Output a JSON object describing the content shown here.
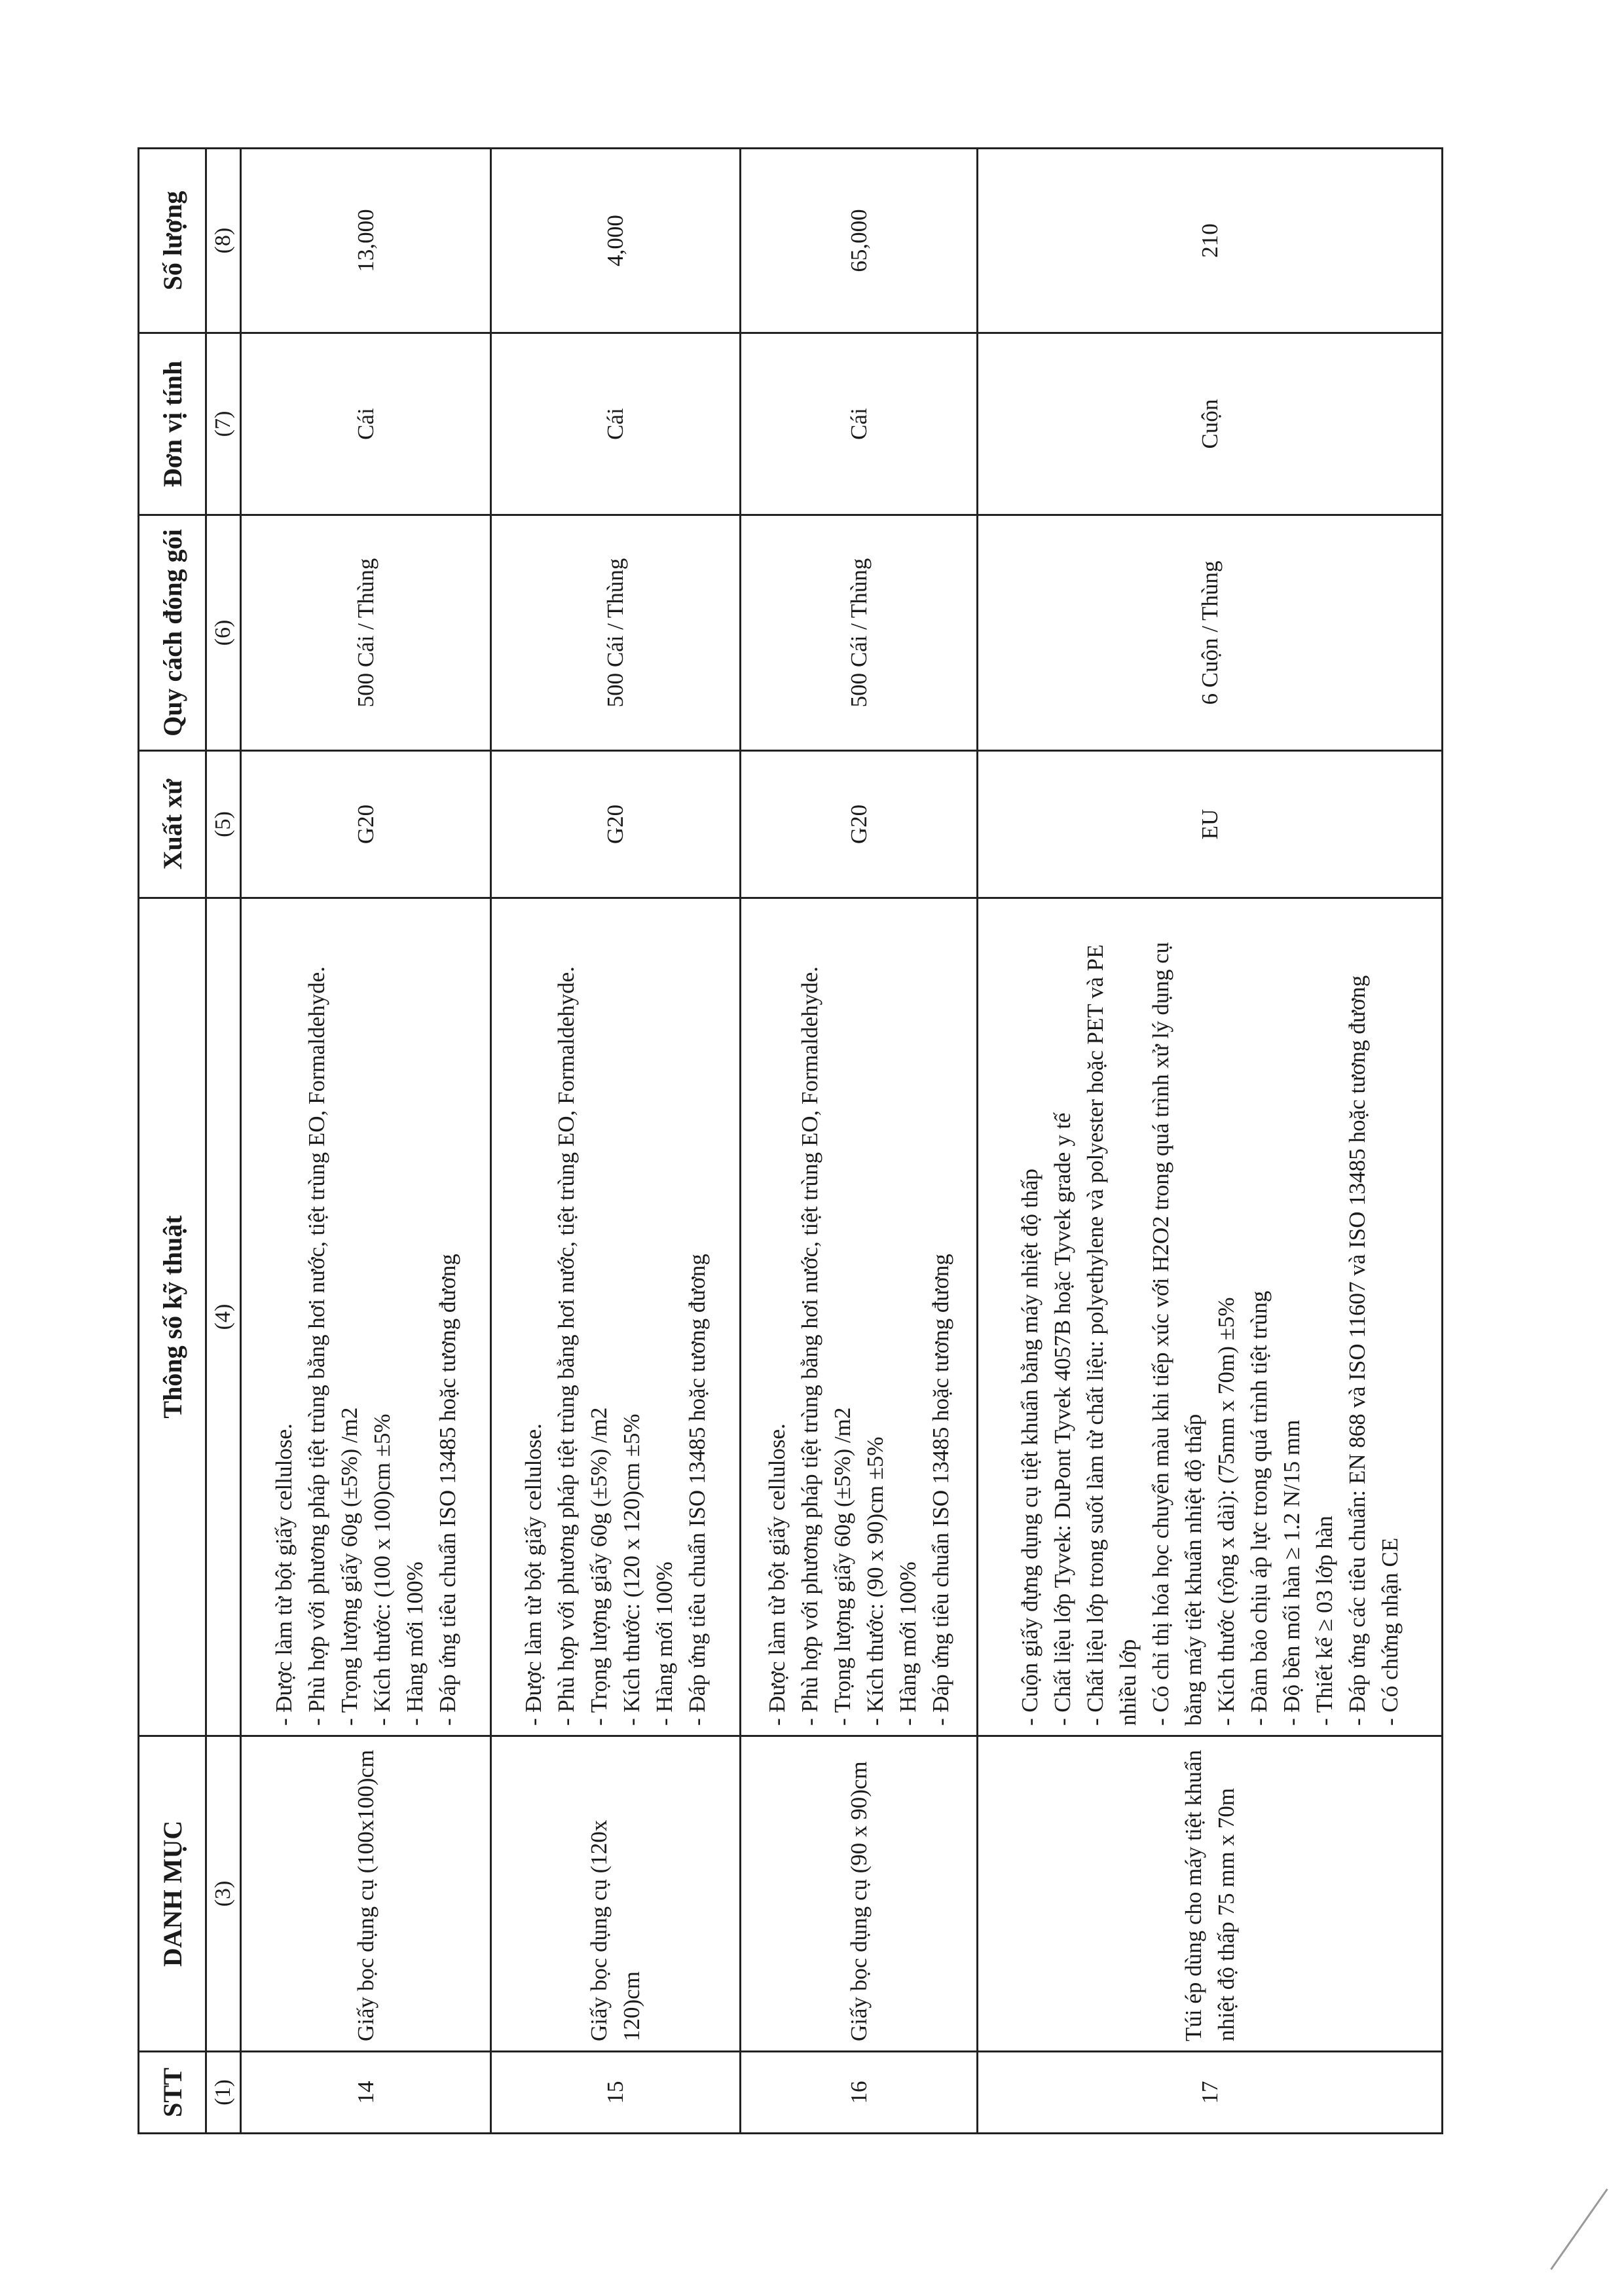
{
  "table": {
    "headers": [
      "STT",
      "DANH MỤC",
      "Thông số kỹ thuật",
      "Xuất xứ",
      "Quy cách đóng gói",
      "Đơn vị tính",
      "Số lượng"
    ],
    "column_numbers": [
      "(1)",
      "(3)",
      "(4)",
      "(5)",
      "(6)",
      "(7)",
      "(8)"
    ],
    "rows": [
      {
        "stt": "14",
        "name": "Giấy bọc dụng cụ (100x100)cm",
        "specs": [
          "- Được làm từ bột giấy cellulose.",
          "- Phù hợp với phương pháp tiệt trùng bằng hơi nước, tiệt trùng EO, Formaldehyde.",
          "- Trọng lượng giấy 60g (±5%) /m2",
          "- Kích thước: (100 x 100)cm ±5%",
          "- Hàng mới 100%",
          "- Đáp ứng tiêu chuẩn ISO 13485 hoặc tương đương"
        ],
        "origin": "G20",
        "packing": "500 Cái / Thùng",
        "unit": "Cái",
        "quantity": "13,000"
      },
      {
        "stt": "15",
        "name": "Giấy bọc dụng cụ (120x 120)cm",
        "specs": [
          "- Được làm từ bột giấy cellulose.",
          "- Phù hợp với phương pháp tiệt trùng bằng hơi nước, tiệt trùng EO, Formaldehyde.",
          "- Trọng lượng giấy 60g (±5%) /m2",
          "- Kích thước: (120 x 120)cm ±5%",
          "- Hàng mới 100%",
          "- Đáp ứng tiêu chuẩn ISO 13485 hoặc tương đương"
        ],
        "origin": "G20",
        "packing": "500 Cái / Thùng",
        "unit": "Cái",
        "quantity": "4,000"
      },
      {
        "stt": "16",
        "name": "Giấy bọc dụng cụ (90 x 90)cm",
        "specs": [
          "- Được làm từ bột giấy cellulose.",
          "- Phù hợp với phương pháp tiệt trùng bằng hơi nước, tiệt trùng EO, Formaldehyde.",
          "- Trọng lượng giấy 60g (±5%) /m2",
          "- Kích thước: (90 x 90)cm ±5%",
          "- Hàng mới 100%",
          "- Đáp ứng tiêu chuẩn ISO 13485 hoặc tương đương"
        ],
        "origin": "G20",
        "packing": "500 Cái / Thùng",
        "unit": "Cái",
        "quantity": "65,000"
      },
      {
        "stt": "17",
        "name": "Túi ép dùng cho máy tiệt khuẩn nhiệt độ thấp 75 mm x 70m",
        "specs": [
          "- Cuộn giấy đựng dụng cụ tiệt khuẩn bằng máy nhiệt độ thấp",
          "- Chất liệu lớp Tyvek: DuPont Tyvek 4057B hoặc Tyvek grade y tế",
          "- Chất liệu lớp trong suốt làm từ chất liệu: polyethylene và polyester hoặc PET và PE nhiều lớp",
          "- Có chỉ thị hóa học chuyển màu  khi tiếp xúc với H2O2 trong quá trình xử lý dụng cụ bằng máy tiệt khuẩn nhiệt độ thấp",
          "- Kích thước (rộng x dài): (75mm x 70m) ±5%",
          "- Đảm bảo chịu áp lực trong quá trình tiệt trùng",
          "- Độ bền mối hàn ≥ 1.2 N/15 mm",
          "- Thiết kế ≥ 03 lớp hàn",
          "- Đáp ứng các tiêu chuẩn: EN 868 và ISO 11607 và ISO 13485 hoặc tương đương",
          "- Có chứng nhận CE"
        ],
        "origin": "EU",
        "packing": "6 Cuộn / Thùng",
        "unit": "Cuộn",
        "quantity": "210"
      }
    ]
  }
}
